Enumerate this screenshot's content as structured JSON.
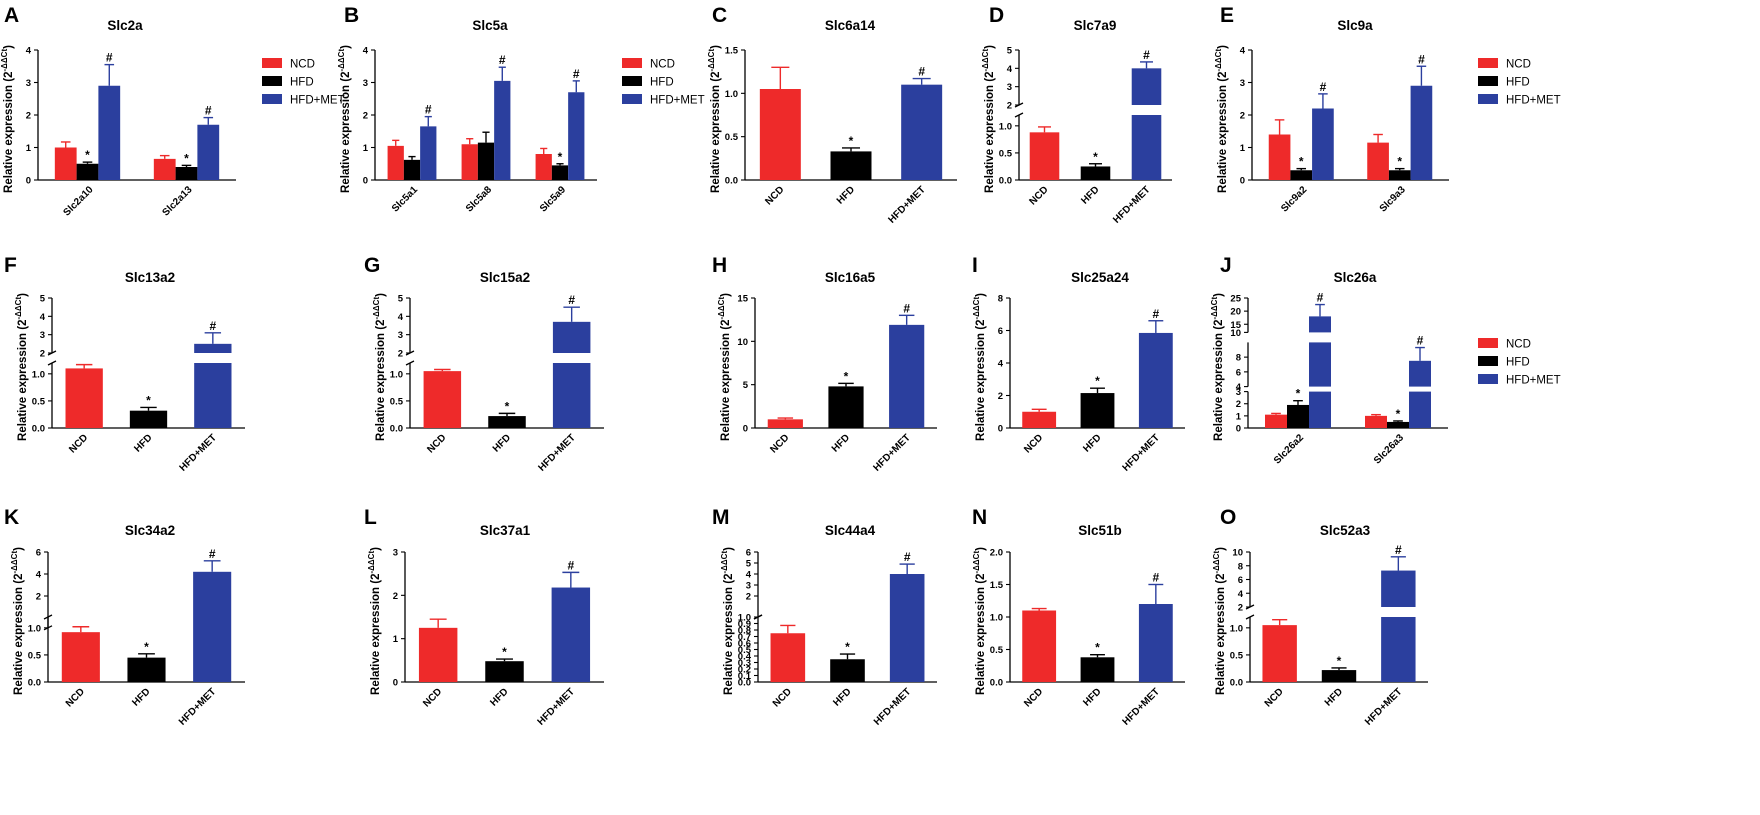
{
  "figure": {
    "y_axis_label": "Relative expression",
    "y_axis_unit": "(2",
    "y_axis_unit_sup": "-ΔΔCt",
    "y_axis_unit_close": ")",
    "legend_entries": [
      {
        "name": "NCD",
        "color": "#ee2a2a"
      },
      {
        "name": "HFD",
        "color": "#000000"
      },
      {
        "name": "HFD+MET",
        "color": "#2b3f9e"
      }
    ]
  },
  "chart_data": [
    {
      "panel": "A",
      "type": "bar",
      "title": "Slc2a",
      "categories": [
        "Slc2a10",
        "Slc2a13"
      ],
      "series": [
        {
          "name": "NCD",
          "values": [
            1.0,
            0.65
          ],
          "errors": [
            0.17,
            0.1
          ],
          "sig": [
            "",
            ""
          ]
        },
        {
          "name": "HFD",
          "values": [
            0.5,
            0.4
          ],
          "errors": [
            0.05,
            0.05
          ],
          "sig": [
            "*",
            "*"
          ]
        },
        {
          "name": "HFD+MET",
          "values": [
            2.9,
            1.7
          ],
          "errors": [
            0.65,
            0.22
          ],
          "sig": [
            "#",
            "#"
          ]
        }
      ],
      "ylim": [
        0,
        4
      ],
      "yticks": [
        0,
        1,
        2,
        3,
        4
      ],
      "legend": "right"
    },
    {
      "panel": "B",
      "type": "bar",
      "title": "Slc5a",
      "categories": [
        "Slc5a1",
        "Slc5a8",
        "Slc5a9"
      ],
      "series": [
        {
          "name": "NCD",
          "values": [
            1.05,
            1.1,
            0.8
          ],
          "errors": [
            0.17,
            0.17,
            0.17
          ],
          "sig": [
            "",
            "",
            ""
          ]
        },
        {
          "name": "HFD",
          "values": [
            0.62,
            1.15,
            0.45
          ],
          "errors": [
            0.1,
            0.32,
            0.05
          ],
          "sig": [
            "",
            "",
            "*"
          ]
        },
        {
          "name": "HFD+MET",
          "values": [
            1.65,
            3.05,
            2.7
          ],
          "errors": [
            0.3,
            0.42,
            0.35
          ],
          "sig": [
            "#",
            "#",
            "#"
          ]
        }
      ],
      "ylim": [
        0,
        4
      ],
      "yticks": [
        0,
        1,
        2,
        3,
        4
      ],
      "legend": "right"
    },
    {
      "panel": "C",
      "type": "bar",
      "title": "Slc6a14",
      "categories": [
        "NCD",
        "HFD",
        "HFD+MET"
      ],
      "values": [
        1.05,
        0.33,
        1.1
      ],
      "errors": [
        0.25,
        0.04,
        0.07
      ],
      "sig": [
        "",
        "*",
        "#"
      ],
      "ylim": [
        0,
        1.5
      ],
      "yticks": [
        0.0,
        0.5,
        1.0,
        1.5
      ]
    },
    {
      "panel": "D",
      "type": "bar",
      "title": "Slc7a9",
      "categories": [
        "NCD",
        "HFD",
        "HFD+MET"
      ],
      "values": [
        0.88,
        0.25,
        4.0
      ],
      "errors": [
        0.1,
        0.05,
        0.35
      ],
      "sig": [
        "",
        "*",
        "#"
      ],
      "ylim": [
        0,
        5
      ],
      "broken_axis": [
        1.2,
        2
      ],
      "yticks": [
        0.0,
        0.5,
        1.0,
        2,
        3,
        4,
        5
      ]
    },
    {
      "panel": "E",
      "type": "bar",
      "title": "Slc9a",
      "categories": [
        "Slc9a2",
        "Slc9a3"
      ],
      "series": [
        {
          "name": "NCD",
          "values": [
            1.4,
            1.15
          ],
          "errors": [
            0.45,
            0.25
          ],
          "sig": [
            "",
            ""
          ]
        },
        {
          "name": "HFD",
          "values": [
            0.3,
            0.3
          ],
          "errors": [
            0.05,
            0.05
          ],
          "sig": [
            "*",
            "*"
          ]
        },
        {
          "name": "HFD+MET",
          "values": [
            2.2,
            2.9
          ],
          "errors": [
            0.45,
            0.6
          ],
          "sig": [
            "#",
            "#"
          ]
        }
      ],
      "ylim": [
        0,
        4
      ],
      "yticks": [
        0,
        1,
        2,
        3,
        4
      ],
      "legend": "right"
    },
    {
      "panel": "F",
      "type": "bar",
      "title": "Slc13a2",
      "categories": [
        "NCD",
        "HFD",
        "HFD+MET"
      ],
      "values": [
        1.1,
        0.32,
        2.5
      ],
      "errors": [
        0.07,
        0.06,
        0.6
      ],
      "sig": [
        "",
        "*",
        "#"
      ],
      "ylim": [
        0,
        5
      ],
      "broken_axis": [
        1.2,
        2
      ],
      "yticks": [
        0.0,
        0.5,
        1.0,
        2,
        3,
        4,
        5
      ]
    },
    {
      "panel": "G",
      "type": "bar",
      "title": "Slc15a2",
      "categories": [
        "NCD",
        "HFD",
        "HFD+MET"
      ],
      "values": [
        1.05,
        0.22,
        3.7
      ],
      "errors": [
        0.03,
        0.05,
        0.8
      ],
      "sig": [
        "",
        "*",
        "#"
      ],
      "ylim": [
        0,
        5
      ],
      "broken_axis": [
        1.2,
        2
      ],
      "yticks": [
        0.0,
        0.5,
        1.0,
        2,
        3,
        4,
        5
      ]
    },
    {
      "panel": "H",
      "type": "bar",
      "title": "Slc16a5",
      "categories": [
        "NCD",
        "HFD",
        "HFD+MET"
      ],
      "values": [
        1.0,
        4.8,
        11.9
      ],
      "errors": [
        0.15,
        0.35,
        1.1
      ],
      "sig": [
        "",
        "*",
        "#"
      ],
      "ylim": [
        0,
        15
      ],
      "yticks": [
        0,
        5,
        10,
        15
      ]
    },
    {
      "panel": "I",
      "type": "bar",
      "title": "Slc25a24",
      "categories": [
        "NCD",
        "HFD",
        "HFD+MET"
      ],
      "values": [
        1.0,
        2.15,
        5.85
      ],
      "errors": [
        0.15,
        0.3,
        0.75
      ],
      "sig": [
        "",
        "*",
        "#"
      ],
      "ylim": [
        0,
        8
      ],
      "yticks": [
        0,
        2,
        4,
        6,
        8
      ]
    },
    {
      "panel": "J",
      "type": "bar",
      "title": "Slc26a",
      "categories": [
        "Slc26a2",
        "Slc26a3"
      ],
      "series": [
        {
          "name": "NCD",
          "values": [
            1.1,
            1.0
          ],
          "errors": [
            0.1,
            0.1
          ],
          "sig": [
            "",
            ""
          ]
        },
        {
          "name": "HFD",
          "values": [
            1.9,
            0.5
          ],
          "errors": [
            0.35,
            0.08
          ],
          "sig": [
            "*",
            "*"
          ]
        },
        {
          "name": "HFD+MET",
          "values": [
            18,
            7.5
          ],
          "errors": [
            4.5,
            1.8
          ],
          "sig": [
            "#",
            "#"
          ]
        }
      ],
      "ylim": [
        0,
        25
      ],
      "broken_axis": [
        [
          3,
          4
        ],
        [
          10,
          10
        ]
      ],
      "yticks": [
        0,
        1,
        2,
        3,
        4,
        6,
        8,
        10,
        15,
        20,
        25
      ],
      "legend": "right"
    },
    {
      "panel": "K",
      "type": "bar",
      "title": "Slc34a2",
      "categories": [
        "NCD",
        "HFD",
        "HFD+MET"
      ],
      "values": [
        0.92,
        0.45,
        4.2
      ],
      "errors": [
        0.1,
        0.07,
        1.0
      ],
      "sig": [
        "",
        "*",
        "#"
      ],
      "ylim": [
        0,
        6
      ],
      "broken_axis": [
        1.2,
        1
      ],
      "yticks": [
        0.0,
        0.5,
        1.0,
        2,
        4,
        6
      ]
    },
    {
      "panel": "L",
      "type": "bar",
      "title": "Slc37a1",
      "categories": [
        "NCD",
        "HFD",
        "HFD+MET"
      ],
      "values": [
        1.25,
        0.48,
        2.18
      ],
      "errors": [
        0.2,
        0.05,
        0.35
      ],
      "sig": [
        "",
        "*",
        "#"
      ],
      "ylim": [
        0,
        3
      ],
      "yticks": [
        0,
        1,
        2,
        3
      ]
    },
    {
      "panel": "M",
      "type": "bar",
      "title": "Slc44a4",
      "categories": [
        "NCD",
        "HFD",
        "HFD+MET"
      ],
      "values": [
        0.75,
        0.35,
        4.0
      ],
      "errors": [
        0.12,
        0.08,
        0.9
      ],
      "sig": [
        "",
        "*",
        "#"
      ],
      "ylim": [
        0,
        6
      ],
      "broken_axis": [
        1.0,
        1
      ],
      "yticks": [
        0.0,
        0.1,
        0.2,
        0.3,
        0.4,
        0.5,
        0.6,
        0.7,
        0.8,
        0.9,
        1.0,
        2,
        3,
        4,
        5,
        6
      ]
    },
    {
      "panel": "N",
      "type": "bar",
      "title": "Slc51b",
      "categories": [
        "NCD",
        "HFD",
        "HFD+MET"
      ],
      "values": [
        1.1,
        0.38,
        1.2
      ],
      "errors": [
        0.03,
        0.04,
        0.3
      ],
      "sig": [
        "",
        "*",
        "#"
      ],
      "ylim": [
        0,
        2.0
      ],
      "yticks": [
        0.0,
        0.5,
        1.0,
        1.5,
        2.0
      ]
    },
    {
      "panel": "O",
      "type": "bar",
      "title": "Slc52a3",
      "categories": [
        "NCD",
        "HFD",
        "HFD+MET"
      ],
      "values": [
        1.05,
        0.22,
        7.3
      ],
      "errors": [
        0.1,
        0.04,
        2.0
      ],
      "sig": [
        "",
        "*",
        "#"
      ],
      "ylim": [
        0,
        10
      ],
      "broken_axis": [
        1.2,
        2
      ],
      "yticks": [
        0.0,
        0.5,
        1.0,
        2,
        4,
        6,
        8,
        10
      ]
    }
  ]
}
